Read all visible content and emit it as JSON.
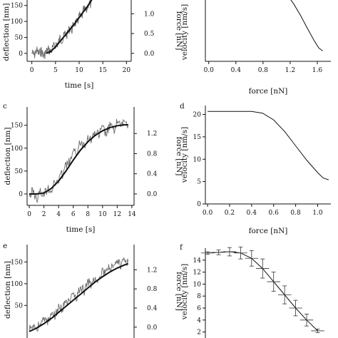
{
  "panels": [
    {
      "letter": ""
    },
    {
      "letter": ""
    },
    {
      "letter": "c"
    },
    {
      "letter": "d"
    },
    {
      "letter": "e"
    },
    {
      "letter": "f"
    }
  ],
  "chart_data": [
    {
      "panel": "a",
      "type": "line",
      "xlabel": "time [s]",
      "ylabel": "deflection [nm]",
      "y2label": "force [nN]",
      "xlim": [
        -1,
        21
      ],
      "ylim": [
        -25,
        185
      ],
      "xticks": [
        0,
        5,
        10,
        15,
        20
      ],
      "yticks": [
        0,
        50,
        100,
        150
      ],
      "y2ticks": [
        {
          "label": "0.0",
          "at": 0
        },
        {
          "label": "0.5",
          "at": 62
        },
        {
          "label": "1.0",
          "at": 124
        }
      ],
      "series": [
        {
          "style": "noisy-gray",
          "x": [
            0,
            0.5,
            1,
            1.5,
            2,
            2.5,
            3,
            3.5,
            4,
            4.5,
            5,
            5.5,
            6,
            6.5,
            7,
            7.5,
            8,
            8.5,
            9,
            9.5,
            10,
            10.5,
            11,
            11.5,
            12,
            12.5,
            13
          ],
          "y": [
            2,
            -6,
            10,
            -2,
            8,
            -9,
            4,
            12,
            5,
            18,
            28,
            30,
            48,
            42,
            62,
            58,
            80,
            74,
            98,
            92,
            118,
            110,
            138,
            130,
            160,
            152,
            182
          ]
        },
        {
          "style": "fit-black",
          "x": [
            3,
            4,
            5,
            6,
            7,
            8,
            9,
            10,
            11,
            12,
            13
          ],
          "y": [
            0,
            6,
            20,
            38,
            56,
            74,
            92,
            112,
            132,
            152,
            176
          ]
        }
      ]
    },
    {
      "panel": "b",
      "type": "line",
      "xlabel": "force [nN]",
      "ylabel": "velocity [nm/s]",
      "xlim": [
        -0.05,
        1.8
      ],
      "ylim": [
        0,
        20
      ],
      "xticks": [
        0.0,
        0.4,
        0.8,
        1.2,
        1.6
      ],
      "yticks": [],
      "series": [
        {
          "style": "line",
          "x": [
            1.15,
            1.25,
            1.35,
            1.45,
            1.55,
            1.62,
            1.68
          ],
          "y": [
            20,
            17.2,
            13.8,
            10.0,
            6.3,
            4.0,
            3.1
          ]
        }
      ]
    },
    {
      "panel": "c",
      "type": "line",
      "xlabel": "time [s]",
      "ylabel": "deflection [nm]",
      "y2label": "force [nN]",
      "xlim": [
        -0.3,
        14.3
      ],
      "ylim": [
        -25,
        190
      ],
      "xticks": [
        0,
        2,
        4,
        6,
        8,
        10,
        12,
        14
      ],
      "yticks": [
        0,
        50,
        100,
        150
      ],
      "y2ticks": [
        {
          "label": "0.0",
          "at": 0
        },
        {
          "label": "0.4",
          "at": 44
        },
        {
          "label": "0.8",
          "at": 88
        },
        {
          "label": "1.2",
          "at": 132
        }
      ],
      "series": [
        {
          "style": "noisy-gray",
          "x": [
            0,
            0.5,
            1,
            1.5,
            2,
            2.5,
            3,
            3.5,
            4,
            4.5,
            5,
            5.5,
            6,
            6.5,
            7,
            7.5,
            8,
            8.5,
            9,
            9.5,
            10,
            10.5,
            11,
            11.5,
            12,
            12.5,
            13,
            13.5
          ],
          "y": [
            -5,
            8,
            -12,
            4,
            -2,
            14,
            8,
            25,
            30,
            44,
            62,
            70,
            88,
            94,
            112,
            108,
            125,
            118,
            136,
            128,
            145,
            130,
            150,
            138,
            158,
            145,
            162,
            150
          ]
        },
        {
          "style": "fit-black",
          "x": [
            0,
            1,
            2,
            3,
            4,
            5,
            6,
            7,
            8,
            9,
            10,
            11,
            12,
            13,
            13.5
          ],
          "y": [
            0,
            0,
            2,
            12,
            28,
            50,
            74,
            96,
            114,
            128,
            138,
            145,
            149,
            151,
            151
          ]
        }
      ]
    },
    {
      "panel": "d",
      "type": "line",
      "xlabel": "force [nN]",
      "ylabel": "velocity [nm/s]",
      "xlim": [
        -0.02,
        1.12
      ],
      "ylim": [
        0,
        22
      ],
      "xticks": [
        0.0,
        0.2,
        0.4,
        0.6,
        0.8,
        1.0
      ],
      "yticks": [
        0,
        5,
        10,
        15,
        20
      ],
      "series": [
        {
          "style": "line",
          "x": [
            0,
            0.2,
            0.4,
            0.5,
            0.6,
            0.7,
            0.8,
            0.9,
            1.0,
            1.05,
            1.1
          ],
          "y": [
            20.7,
            20.7,
            20.7,
            20.3,
            18.8,
            16.2,
            13.0,
            9.8,
            7.0,
            5.8,
            5.4
          ]
        }
      ]
    },
    {
      "panel": "e",
      "type": "line",
      "xlabel": "",
      "ylabel": "deflection [nm]",
      "y2label": "force [nN]",
      "xlim": [
        -0.3,
        14.3
      ],
      "ylim": [
        -25,
        190
      ],
      "xticks": [],
      "yticks": [
        50,
        100,
        150
      ],
      "y2ticks": [
        {
          "label": "0.0",
          "at": 0
        },
        {
          "label": "0.4",
          "at": 44
        },
        {
          "label": "0.8",
          "at": 88
        },
        {
          "label": "1.2",
          "at": 132
        }
      ],
      "series": [
        {
          "style": "noisy-gray",
          "x": [
            0,
            0.5,
            1,
            1.5,
            2,
            2.5,
            3,
            3.5,
            4,
            4.5,
            5,
            5.5,
            6,
            6.5,
            7,
            7.5,
            8,
            8.5,
            9,
            9.5,
            10,
            10.5,
            11,
            11.5,
            12,
            12.5,
            13,
            13.5
          ],
          "y": [
            -8,
            6,
            -4,
            10,
            18,
            12,
            30,
            26,
            44,
            40,
            60,
            55,
            74,
            70,
            90,
            84,
            104,
            98,
            118,
            110,
            130,
            122,
            140,
            132,
            150,
            140,
            160,
            150
          ]
        },
        {
          "style": "fit-black",
          "x": [
            0,
            1,
            2,
            3,
            4,
            5,
            6,
            7,
            8,
            9,
            10,
            11,
            12,
            13,
            13.5
          ],
          "y": [
            -10,
            -2,
            8,
            20,
            34,
            48,
            62,
            76,
            90,
            104,
            116,
            127,
            136,
            143,
            146
          ]
        }
      ]
    },
    {
      "panel": "f",
      "type": "line",
      "xlabel": "",
      "ylabel": "velocity [nm/s]",
      "xlim": [
        -0.02,
        1.12
      ],
      "ylim": [
        1,
        16
      ],
      "xticks": [],
      "yticks": [
        2,
        4,
        6,
        8,
        10,
        12,
        14
      ],
      "series": [
        {
          "style": "line-errorbars",
          "x": [
            0.0,
            0.1,
            0.2,
            0.3,
            0.4,
            0.5,
            0.6,
            0.7,
            0.8,
            0.9,
            1.0
          ],
          "y": [
            15.2,
            15.3,
            15.4,
            15.2,
            14.3,
            12.6,
            10.4,
            8.2,
            6.0,
            4.0,
            2.2
          ],
          "err": [
            0.2,
            0.4,
            0.7,
            1.0,
            1.3,
            1.6,
            1.6,
            1.5,
            1.3,
            1.0,
            0.3
          ]
        }
      ]
    }
  ]
}
